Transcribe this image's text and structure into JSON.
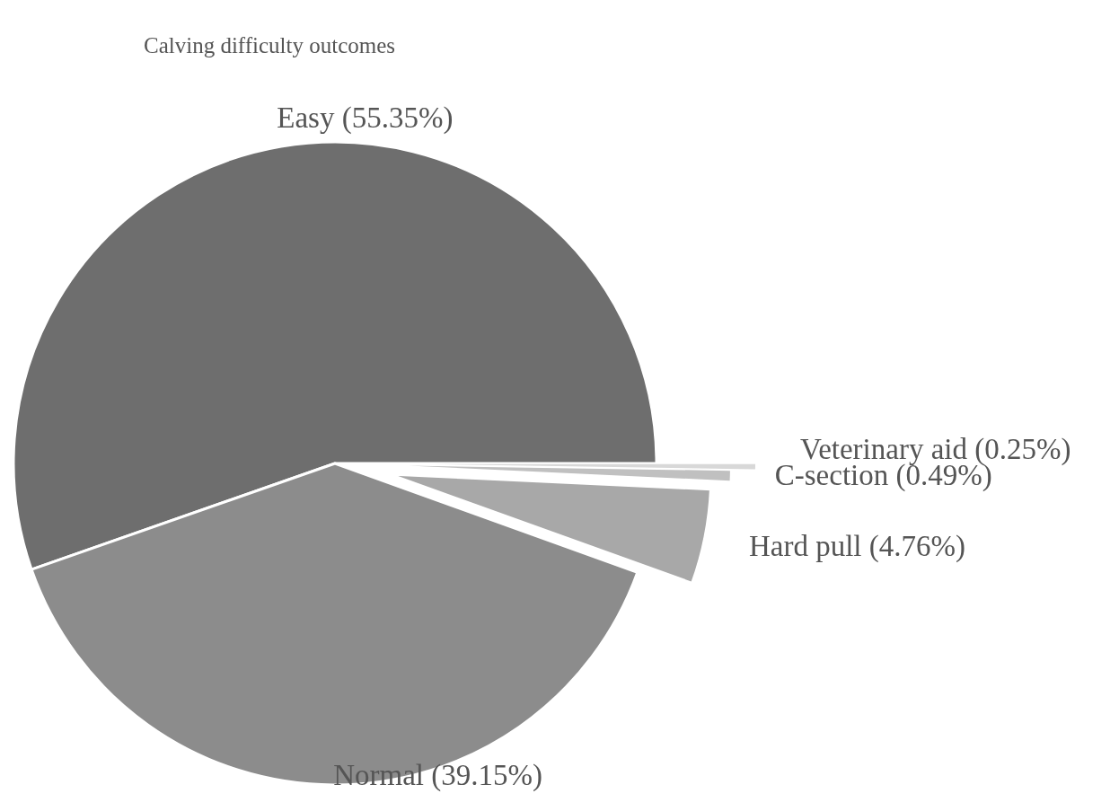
{
  "chart_data": {
    "type": "pie",
    "title": "Calving difficulty outcomes",
    "categories": [
      "Easy (55.35%)",
      "Normal (39.15%)",
      "Hard pull (4.76%)",
      "C-section (0.49%)",
      "Veterinary aid (0.25%)"
    ],
    "values": [
      55.35,
      39.15,
      4.76,
      0.49,
      0.25
    ],
    "colors": [
      "#6e6e6e",
      "#8c8c8c",
      "#a8a8a8",
      "#c0c0c0",
      "#d8d8d8"
    ]
  }
}
